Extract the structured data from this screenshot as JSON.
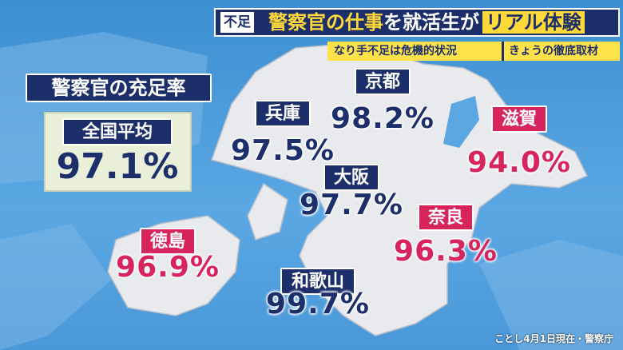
{
  "header": {
    "tag": "不足",
    "title_a": "警察官の仕事",
    "title_b": "を就活生が",
    "title_c": "リアル体験",
    "subtitle": "なり手不足は危機的状況",
    "corner": "きょうの徹底取材"
  },
  "panel": {
    "title": "警察官の充足率",
    "average_label": "全国平均",
    "average_value": "97.1%"
  },
  "regions": [
    {
      "name": "京都",
      "value": "98.2%",
      "color": "#1c2f6b"
    },
    {
      "name": "兵庫",
      "value": "97.5%",
      "color": "#1c2f6b"
    },
    {
      "name": "滋賀",
      "value": "94.0%",
      "color": "#d8245c"
    },
    {
      "name": "大阪",
      "value": "97.7%",
      "color": "#1c2f6b"
    },
    {
      "name": "奈良",
      "value": "96.3%",
      "color": "#d8245c"
    },
    {
      "name": "徳島",
      "value": "96.9%",
      "color": "#d8245c"
    },
    {
      "name": "和歌山",
      "value": "99.7%",
      "color": "#1c2f6b"
    }
  ],
  "source": "ことし4月1日現在・警察庁"
}
